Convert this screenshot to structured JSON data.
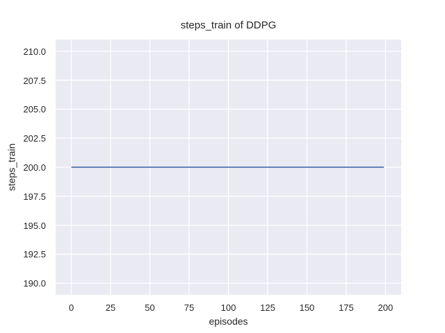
{
  "chart_data": {
    "type": "line",
    "title": "steps_train of DDPG",
    "xlabel": "episodes",
    "ylabel": "steps_train",
    "xlim": [
      -10,
      210
    ],
    "ylim": [
      189,
      211
    ],
    "x_ticks": [
      0,
      25,
      50,
      75,
      100,
      125,
      150,
      175,
      200
    ],
    "x_tick_labels": [
      "0",
      "25",
      "50",
      "75",
      "100",
      "125",
      "150",
      "175",
      "200"
    ],
    "y_ticks": [
      190.0,
      192.5,
      195.0,
      197.5,
      200.0,
      202.5,
      205.0,
      207.5,
      210.0
    ],
    "y_tick_labels": [
      "190.0",
      "192.5",
      "195.0",
      "197.5",
      "200.0",
      "202.5",
      "205.0",
      "207.5",
      "210.0"
    ],
    "grid": true,
    "legend": null,
    "style": {
      "plot_bg": "#eaeaf2",
      "grid_color": "#ffffff",
      "text_color": "#262626",
      "line_color": "#4c72b0",
      "line_width": 1.8,
      "grid_width": 1.3
    },
    "series": [
      {
        "name": "steps_train",
        "color": "#4c72b0",
        "x": [
          0,
          199
        ],
        "y": [
          200,
          200
        ]
      }
    ]
  }
}
